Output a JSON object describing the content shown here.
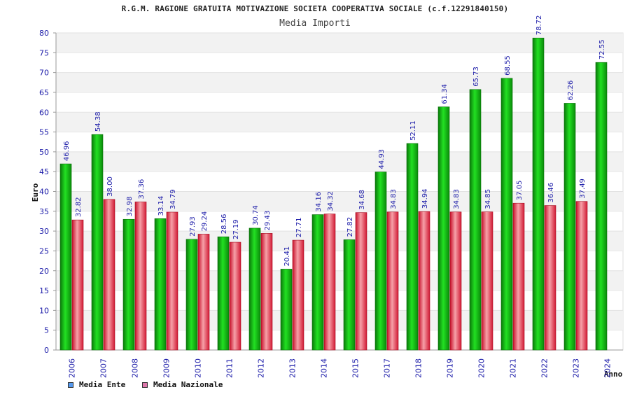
{
  "chart_data": {
    "type": "bar",
    "title": "R.G.M. RAGIONE GRATUITA MOTIVAZIONE SOCIETA COOPERATIVA SOCIALE (c.f.12291840150)",
    "subtitle": "Media Importi",
    "xlabel": "Anno",
    "ylabel": "Euro",
    "ylim": [
      0,
      80
    ],
    "yticks": [
      "0",
      "5",
      "10",
      "15",
      "20",
      "25",
      "30",
      "35",
      "40",
      "45",
      "50",
      "55",
      "60",
      "65",
      "70",
      "75",
      "80"
    ],
    "categories": [
      "2006",
      "2007",
      "2008",
      "2009",
      "2010",
      "2011",
      "2012",
      "2013",
      "2014",
      "2015",
      "2017",
      "2018",
      "2019",
      "2020",
      "2021",
      "2022",
      "2023",
      "2024"
    ],
    "series": [
      {
        "name": "Media Ente",
        "color": "#11b411",
        "legend_color": "#5599ee",
        "values": [
          46.96,
          54.38,
          32.98,
          33.14,
          27.93,
          28.56,
          30.74,
          20.41,
          34.16,
          27.82,
          44.93,
          52.11,
          61.34,
          65.73,
          68.55,
          78.72,
          62.26,
          72.55
        ],
        "labels": [
          "46.96",
          "54.38",
          "32.98",
          "33.14",
          "27.93",
          "28.56",
          "30.74",
          "20.41",
          "34.16",
          "27.82",
          "44.93",
          "52.11",
          "61.34",
          "65.73",
          "68.55",
          "78.72",
          "62.26",
          "72.55"
        ]
      },
      {
        "name": "Media Nazionale",
        "color": "#e83a4a",
        "legend_color": "#dd77aa",
        "values": [
          32.82,
          38.0,
          37.36,
          34.79,
          29.24,
          27.19,
          29.43,
          27.71,
          34.32,
          34.68,
          34.83,
          34.94,
          34.83,
          34.85,
          37.05,
          36.46,
          37.49,
          null
        ],
        "labels": [
          "32.82",
          "38.00",
          "37.36",
          "34.79",
          "29.24",
          "27.19",
          "29.43",
          "27.71",
          "34.32",
          "34.68",
          "34.83",
          "34.94",
          "34.83",
          "34.85",
          "37.05",
          "36.46",
          "37.49",
          null
        ]
      }
    ],
    "grid": true,
    "legend_position": "bottom-left"
  }
}
